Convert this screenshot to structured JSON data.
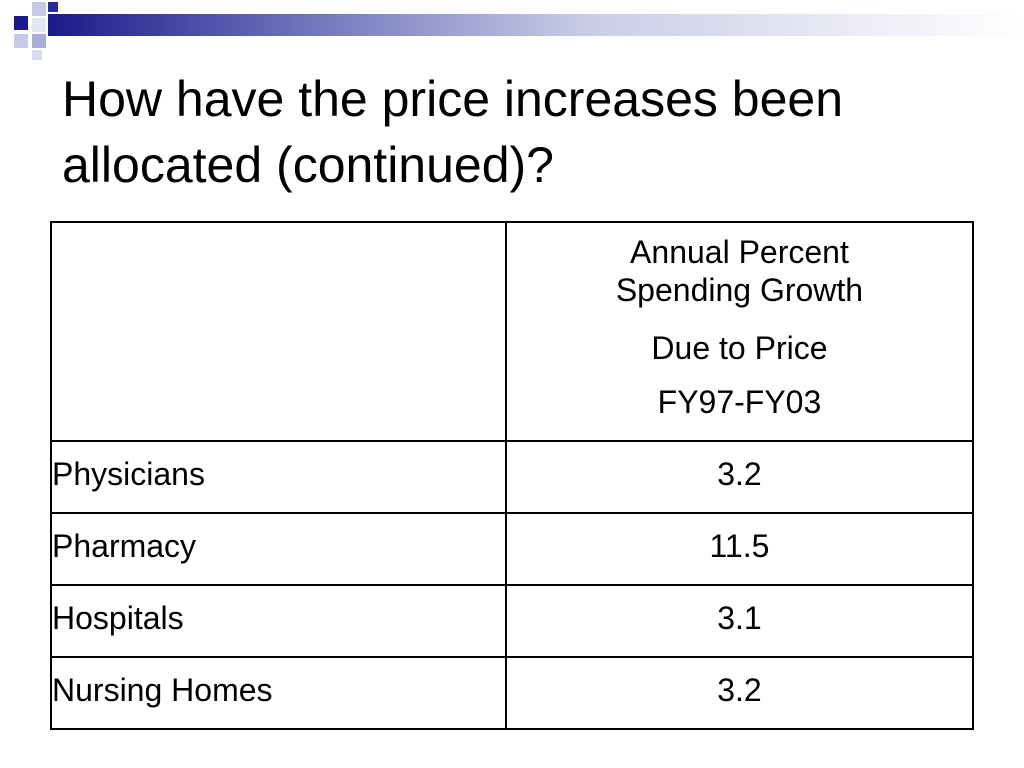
{
  "slide": {
    "title_lines": [
      "How have the price increases been",
      "allocated (continued)?"
    ],
    "colors": {
      "accent_dark": "#1a1a8c",
      "accent_light": "#b8bce0",
      "text": "#000000"
    }
  },
  "table": {
    "header": {
      "label": "",
      "value_lines": [
        "Annual Percent",
        "Spending Growth",
        "Due to Price",
        "FY97-FY03"
      ]
    },
    "rows": [
      {
        "label": "Physicians",
        "value": "3.2"
      },
      {
        "label": "Pharmacy",
        "value": "11.5"
      },
      {
        "label": "Hospitals",
        "value": "3.1"
      },
      {
        "label": "Nursing Homes",
        "value": "3.2"
      }
    ]
  }
}
